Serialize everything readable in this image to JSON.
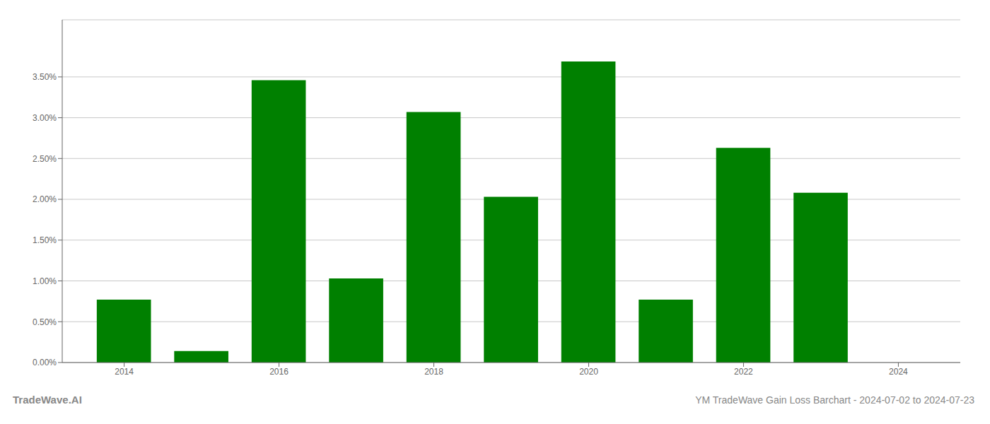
{
  "chart_data": {
    "type": "bar",
    "x": [
      2014,
      2015,
      2016,
      2017,
      2018,
      2019,
      2020,
      2021,
      2022,
      2023
    ],
    "values": [
      0.0077,
      0.0014,
      0.0346,
      0.0103,
      0.0307,
      0.0203,
      0.0369,
      0.0077,
      0.0263,
      0.0208
    ],
    "color": "#008000",
    "xlim": [
      2013.2,
      2024.8
    ],
    "xticks": [
      2014,
      2016,
      2018,
      2020,
      2022,
      2024
    ],
    "ylim": [
      0.0,
      0.042
    ],
    "yticks": [
      {
        "value": 0.0,
        "label": "0.00%"
      },
      {
        "value": 0.005,
        "label": "0.50%"
      },
      {
        "value": 0.01,
        "label": "1.00%"
      },
      {
        "value": 0.015,
        "label": "1.50%"
      },
      {
        "value": 0.02,
        "label": "2.00%"
      },
      {
        "value": 0.025,
        "label": "2.50%"
      },
      {
        "value": 0.03,
        "label": "3.00%"
      },
      {
        "value": 0.035,
        "label": "3.50%"
      }
    ],
    "grid": true,
    "annotations": [
      "TradeWave.AI",
      "YM TradeWave Gain Loss Barchart - 2024-07-02 to 2024-07-23"
    ]
  }
}
